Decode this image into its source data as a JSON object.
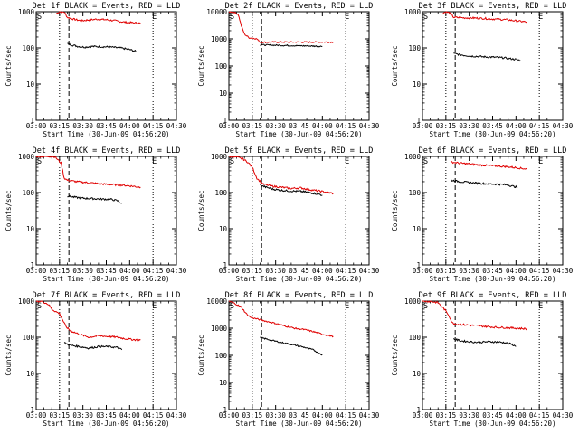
{
  "chart_data": [
    {
      "type": "line",
      "title": "Det 1f BLACK = Events, RED = LLD",
      "xlabel": "Start Time (30-Jun-09 04:56:20)",
      "ylabel": "Counts/sec",
      "x_ticks": [
        "03:00",
        "03:15",
        "03:30",
        "03:45",
        "04:00",
        "04:15",
        "04:30"
      ],
      "y_ticks": [
        "1",
        "10",
        "100",
        "1000"
      ],
      "y_scale": "log",
      "ylim": [
        1,
        1000
      ],
      "markers": [
        "S",
        "E"
      ],
      "series": [
        {
          "color": "#e00000",
          "points": [
            [
              13,
              900
            ],
            [
              15,
              1000
            ],
            [
              18,
              980
            ],
            [
              20,
              700
            ],
            [
              24,
              620
            ],
            [
              29,
              560
            ],
            [
              33,
              590
            ],
            [
              39,
              620
            ],
            [
              45,
              600
            ],
            [
              51,
              560
            ],
            [
              56,
              520
            ],
            [
              61,
              500
            ],
            [
              67,
              480
            ]
          ]
        },
        {
          "color": "#000000",
          "points": [
            [
              20,
              130
            ],
            [
              23,
              120
            ],
            [
              27,
              110
            ],
            [
              31,
              105
            ],
            [
              36,
              110
            ],
            [
              42,
              108
            ],
            [
              48,
              105
            ],
            [
              54,
              100
            ],
            [
              60,
              90
            ],
            [
              64,
              80
            ]
          ]
        }
      ]
    },
    {
      "type": "line",
      "title": "Det 2f BLACK = Events, RED = LLD",
      "xlabel": "Start Time (30-Jun-09 04:56:20)",
      "ylabel": "Counts/sec",
      "x_ticks": [
        "03:00",
        "03:15",
        "03:30",
        "03:45",
        "04:00",
        "04:15",
        "04:30"
      ],
      "y_ticks": [
        "1",
        "10",
        "100",
        "1000",
        "10000"
      ],
      "y_scale": "log",
      "ylim": [
        1,
        10000
      ],
      "markers": [
        "S",
        "E"
      ],
      "series": [
        {
          "color": "#e00000",
          "points": [
            [
              0,
              10000
            ],
            [
              3,
              9800
            ],
            [
              6,
              8000
            ],
            [
              8,
              3000
            ],
            [
              10,
              1500
            ],
            [
              13,
              1100
            ],
            [
              16,
              1050
            ],
            [
              18,
              1000
            ],
            [
              20,
              750
            ],
            [
              30,
              760
            ],
            [
              40,
              760
            ],
            [
              50,
              760
            ],
            [
              60,
              760
            ],
            [
              67,
              760
            ]
          ]
        },
        {
          "color": "#000000",
          "points": [
            [
              20,
              600
            ],
            [
              26,
              590
            ],
            [
              32,
              580
            ],
            [
              38,
              570
            ],
            [
              44,
              560
            ],
            [
              50,
              550
            ],
            [
              56,
              540
            ],
            [
              60,
              530
            ]
          ]
        }
      ]
    },
    {
      "type": "line",
      "title": "Det 3f BLACK = Events, RED = LLD",
      "xlabel": "Start Time (30-Jun-09 04:56:20)",
      "ylabel": "Counts/sec",
      "x_ticks": [
        "03:00",
        "03:15",
        "03:30",
        "03:45",
        "04:00",
        "04:15",
        "04:30"
      ],
      "y_ticks": [
        "1",
        "10",
        "100",
        "1000"
      ],
      "y_scale": "log",
      "ylim": [
        1,
        1000
      ],
      "markers": [
        "S",
        "E"
      ],
      "series": [
        {
          "color": "#e00000",
          "points": [
            [
              13,
              900
            ],
            [
              15,
              1000
            ],
            [
              18,
              900
            ],
            [
              20,
              700
            ],
            [
              26,
              680
            ],
            [
              33,
              670
            ],
            [
              40,
              650
            ],
            [
              47,
              620
            ],
            [
              54,
              600
            ],
            [
              60,
              560
            ],
            [
              67,
              520
            ]
          ]
        },
        {
          "color": "#000000",
          "points": [
            [
              20,
              70
            ],
            [
              24,
              65
            ],
            [
              30,
              60
            ],
            [
              36,
              58
            ],
            [
              42,
              56
            ],
            [
              48,
              55
            ],
            [
              54,
              52
            ],
            [
              60,
              48
            ],
            [
              63,
              45
            ]
          ]
        }
      ]
    },
    {
      "type": "line",
      "title": "Det 4f BLACK = Events, RED = LLD",
      "xlabel": "Start Time (30-Jun-09 04:56:20)",
      "ylabel": "Counts/sec",
      "x_ticks": [
        "03:00",
        "03:15",
        "03:30",
        "03:45",
        "04:00",
        "04:15",
        "04:30"
      ],
      "y_ticks": [
        "1",
        "10",
        "100",
        "1000"
      ],
      "y_scale": "log",
      "ylim": [
        1,
        1000
      ],
      "markers": [
        "S",
        "E"
      ],
      "series": [
        {
          "color": "#e00000",
          "points": [
            [
              0,
              1000
            ],
            [
              5,
              990
            ],
            [
              9,
              1000
            ],
            [
              12,
              980
            ],
            [
              14,
              800
            ],
            [
              16,
              650
            ],
            [
              17,
              400
            ],
            [
              18,
              250
            ],
            [
              20,
              220
            ],
            [
              26,
              200
            ],
            [
              32,
              190
            ],
            [
              38,
              180
            ],
            [
              44,
              170
            ],
            [
              50,
              165
            ],
            [
              56,
              160
            ],
            [
              62,
              150
            ],
            [
              67,
              140
            ]
          ]
        },
        {
          "color": "#000000",
          "points": [
            [
              20,
              80
            ],
            [
              24,
              75
            ],
            [
              30,
              70
            ],
            [
              36,
              68
            ],
            [
              42,
              66
            ],
            [
              48,
              65
            ],
            [
              52,
              60
            ],
            [
              55,
              50
            ]
          ]
        }
      ]
    },
    {
      "type": "line",
      "title": "Det 5f BLACK = Events, RED = LLD",
      "xlabel": "Start Time (30-Jun-09 04:56:20)",
      "ylabel": "Counts/sec",
      "x_ticks": [
        "03:00",
        "03:15",
        "03:30",
        "03:45",
        "04:00",
        "04:15",
        "04:30"
      ],
      "y_ticks": [
        "1",
        "10",
        "100",
        "1000"
      ],
      "y_scale": "log",
      "ylim": [
        1,
        1000
      ],
      "markers": [
        "S",
        "E"
      ],
      "series": [
        {
          "color": "#e00000",
          "points": [
            [
              0,
              1000
            ],
            [
              5,
              950
            ],
            [
              9,
              850
            ],
            [
              12,
              700
            ],
            [
              15,
              500
            ],
            [
              18,
              250
            ],
            [
              22,
              170
            ],
            [
              28,
              150
            ],
            [
              34,
              140
            ],
            [
              40,
              130
            ],
            [
              46,
              135
            ],
            [
              52,
              120
            ],
            [
              58,
              110
            ],
            [
              64,
              100
            ],
            [
              67,
              95
            ]
          ]
        },
        {
          "color": "#000000",
          "points": [
            [
              20,
              160
            ],
            [
              24,
              140
            ],
            [
              28,
              125
            ],
            [
              34,
              115
            ],
            [
              40,
              110
            ],
            [
              46,
              108
            ],
            [
              52,
              100
            ],
            [
              58,
              90
            ],
            [
              60,
              85
            ]
          ]
        }
      ]
    },
    {
      "type": "line",
      "title": "Det 6f BLACK = Events, RED = LLD",
      "xlabel": "Start Time (30-Jun-09 04:56:20)",
      "ylabel": "Counts/sec",
      "x_ticks": [
        "03:00",
        "03:15",
        "03:30",
        "03:45",
        "04:00",
        "04:15",
        "04:30"
      ],
      "y_ticks": [
        "1",
        "10",
        "100",
        "1000"
      ],
      "y_scale": "log",
      "ylim": [
        1,
        1000
      ],
      "markers": [
        "S",
        "E"
      ],
      "series": [
        {
          "color": "#e00000",
          "points": [
            [
              18,
              700
            ],
            [
              24,
              650
            ],
            [
              30,
              620
            ],
            [
              36,
              580
            ],
            [
              42,
              560
            ],
            [
              48,
              540
            ],
            [
              54,
              520
            ],
            [
              60,
              490
            ],
            [
              67,
              450
            ]
          ]
        },
        {
          "color": "#000000",
          "points": [
            [
              18,
              220
            ],
            [
              24,
              200
            ],
            [
              30,
              190
            ],
            [
              36,
              180
            ],
            [
              42,
              175
            ],
            [
              48,
              170
            ],
            [
              54,
              165
            ],
            [
              58,
              150
            ],
            [
              61,
              140
            ]
          ]
        }
      ]
    },
    {
      "type": "line",
      "title": "Det 7f BLACK = Events, RED = LLD",
      "xlabel": "Start Time (30-Jun-09 04:56:20)",
      "ylabel": "Counts/sec",
      "x_ticks": [
        "03:00",
        "03:15",
        "03:30",
        "03:45",
        "04:00",
        "04:15",
        "04:30"
      ],
      "y_ticks": [
        "1",
        "10",
        "100",
        "1000"
      ],
      "y_scale": "log",
      "ylim": [
        1,
        1000
      ],
      "markers": [
        "S",
        "E"
      ],
      "series": [
        {
          "color": "#e00000",
          "points": [
            [
              0,
              1000
            ],
            [
              4,
              980
            ],
            [
              8,
              800
            ],
            [
              10,
              600
            ],
            [
              13,
              500
            ],
            [
              15,
              450
            ],
            [
              17,
              300
            ],
            [
              19,
              200
            ],
            [
              22,
              150
            ],
            [
              28,
              120
            ],
            [
              34,
              100
            ],
            [
              40,
              110
            ],
            [
              46,
              105
            ],
            [
              52,
              100
            ],
            [
              58,
              90
            ],
            [
              64,
              85
            ],
            [
              67,
              85
            ]
          ]
        },
        {
          "color": "#000000",
          "points": [
            [
              18,
              70
            ],
            [
              22,
              60
            ],
            [
              28,
              55
            ],
            [
              34,
              50
            ],
            [
              40,
              55
            ],
            [
              46,
              55
            ],
            [
              52,
              52
            ],
            [
              55,
              45
            ]
          ]
        }
      ]
    },
    {
      "type": "line",
      "title": "Det 8f BLACK = Events, RED = LLD",
      "xlabel": "Start Time (30-Jun-09 04:56:20)",
      "ylabel": "Counts/sec",
      "x_ticks": [
        "03:00",
        "03:15",
        "03:30",
        "03:45",
        "04:00",
        "04:15",
        "04:30"
      ],
      "y_ticks": [
        "1",
        "10",
        "100",
        "1000",
        "10000"
      ],
      "y_scale": "log",
      "ylim": [
        1,
        10000
      ],
      "markers": [
        "S",
        "E"
      ],
      "series": [
        {
          "color": "#e00000",
          "points": [
            [
              0,
              10000
            ],
            [
              4,
              8000
            ],
            [
              8,
              6000
            ],
            [
              11,
              3500
            ],
            [
              14,
              2500
            ],
            [
              18,
              2200
            ],
            [
              24,
              1800
            ],
            [
              30,
              1500
            ],
            [
              36,
              1200
            ],
            [
              42,
              1000
            ],
            [
              48,
              900
            ],
            [
              54,
              750
            ],
            [
              60,
              600
            ],
            [
              67,
              500
            ]
          ]
        },
        {
          "color": "#000000",
          "points": [
            [
              20,
              450
            ],
            [
              24,
              400
            ],
            [
              30,
              330
            ],
            [
              36,
              280
            ],
            [
              42,
              240
            ],
            [
              48,
              200
            ],
            [
              54,
              160
            ],
            [
              58,
              120
            ],
            [
              60,
              105
            ]
          ]
        }
      ]
    },
    {
      "type": "line",
      "title": "Det 9f BLACK = Events, RED = LLD",
      "xlabel": "Start Time (30-Jun-09 04:56:20)",
      "ylabel": "Counts/sec",
      "x_ticks": [
        "03:00",
        "03:15",
        "03:30",
        "03:45",
        "04:00",
        "04:15",
        "04:30"
      ],
      "y_ticks": [
        "1",
        "10",
        "100",
        "1000"
      ],
      "y_scale": "log",
      "ylim": [
        1,
        1000
      ],
      "markers": [
        "S",
        "E"
      ],
      "series": [
        {
          "color": "#e00000",
          "points": [
            [
              0,
              1000
            ],
            [
              5,
              980
            ],
            [
              10,
              900
            ],
            [
              14,
              600
            ],
            [
              17,
              400
            ],
            [
              19,
              250
            ],
            [
              22,
              230
            ],
            [
              28,
              220
            ],
            [
              34,
              210
            ],
            [
              40,
              200
            ],
            [
              46,
              190
            ],
            [
              52,
              185
            ],
            [
              58,
              180
            ],
            [
              64,
              175
            ],
            [
              67,
              170
            ]
          ]
        },
        {
          "color": "#000000",
          "points": [
            [
              20,
              90
            ],
            [
              24,
              80
            ],
            [
              30,
              75
            ],
            [
              36,
              72
            ],
            [
              42,
              75
            ],
            [
              48,
              74
            ],
            [
              54,
              70
            ],
            [
              58,
              62
            ],
            [
              60,
              55
            ]
          ]
        }
      ]
    }
  ]
}
